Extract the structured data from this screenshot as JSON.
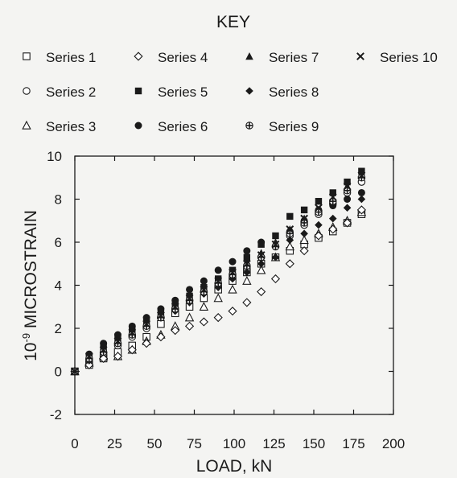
{
  "chart_data": {
    "type": "scatter",
    "legend": {
      "title": "KEY",
      "placement": "top"
    },
    "xlabel": "LOAD, kN",
    "ylabel": "10-9 MICROSTRAIN",
    "ylabel_base": "10",
    "ylabel_exponent": "-9",
    "ylabel_rest": " MICROSTRAIN",
    "xlim": [
      0,
      200
    ],
    "ylim": [
      -2,
      10
    ],
    "xticks": [
      0,
      25,
      50,
      75,
      100,
      125,
      150,
      175,
      200
    ],
    "yticks": [
      -2,
      0,
      2,
      4,
      6,
      8,
      10
    ],
    "x": [
      0,
      9,
      18,
      27,
      36,
      45,
      54,
      63,
      72,
      81,
      90,
      99,
      108,
      117,
      126,
      135,
      144,
      153,
      162,
      171,
      180
    ],
    "series": [
      {
        "name": "Series 1",
        "marker": "open-square",
        "values": [
          0,
          0.3,
          0.6,
          0.9,
          1.2,
          1.6,
          2.2,
          2.7,
          3.0,
          3.4,
          3.8,
          4.2,
          4.6,
          5.0,
          5.3,
          5.6,
          5.9,
          6.2,
          6.5,
          6.9,
          7.3
        ]
      },
      {
        "name": "Series 2",
        "marker": "open-circle",
        "values": [
          0,
          0.5,
          0.8,
          1.2,
          1.6,
          2.0,
          2.5,
          2.9,
          3.3,
          3.7,
          4.0,
          4.4,
          4.8,
          5.3,
          5.8,
          6.3,
          6.8,
          7.3,
          7.8,
          8.3,
          8.8
        ]
      },
      {
        "name": "Series 3",
        "marker": "open-triangle",
        "values": [
          0,
          0.4,
          0.7,
          0.7,
          1.0,
          1.4,
          1.7,
          2.1,
          2.5,
          3.0,
          3.4,
          3.8,
          4.2,
          4.7,
          5.3,
          5.8,
          6.1,
          6.4,
          6.7,
          7.0,
          7.4
        ]
      },
      {
        "name": "Series 4",
        "marker": "open-diamond",
        "values": [
          0,
          0.3,
          0.6,
          0.7,
          1.0,
          1.3,
          1.6,
          1.9,
          2.1,
          2.3,
          2.5,
          2.8,
          3.2,
          3.7,
          4.3,
          5.0,
          5.6,
          6.3,
          6.6,
          6.9,
          7.5
        ]
      },
      {
        "name": "Series 5",
        "marker": "filled-square",
        "values": [
          0,
          0.7,
          1.1,
          1.5,
          1.9,
          2.3,
          2.7,
          3.1,
          3.5,
          3.9,
          4.3,
          4.7,
          5.3,
          5.9,
          6.3,
          7.2,
          7.5,
          7.9,
          8.3,
          8.8,
          9.3
        ]
      },
      {
        "name": "Series 6",
        "marker": "filled-circle",
        "values": [
          0,
          0.8,
          1.3,
          1.7,
          2.1,
          2.5,
          2.9,
          3.3,
          3.8,
          4.2,
          4.7,
          5.1,
          5.6,
          6.0,
          5.8,
          6.5,
          7.0,
          7.5,
          7.7,
          8.0,
          8.3
        ]
      },
      {
        "name": "Series 7",
        "marker": "filled-triangle",
        "values": [
          0,
          0.6,
          1.0,
          1.4,
          1.8,
          2.2,
          2.6,
          3.0,
          3.4,
          3.8,
          4.2,
          4.6,
          5.1,
          5.5,
          6.0,
          6.6,
          7.1,
          7.5,
          7.9,
          8.6,
          9.2
        ]
      },
      {
        "name": "Series 8",
        "marker": "filled-diamond",
        "values": [
          0,
          0.5,
          0.9,
          1.3,
          1.7,
          2.1,
          2.5,
          2.8,
          3.2,
          3.6,
          3.9,
          4.3,
          4.6,
          5.0,
          5.3,
          6.1,
          6.4,
          6.8,
          7.1,
          7.6,
          8.0
        ]
      },
      {
        "name": "Series 9",
        "marker": "crossed-circle",
        "values": [
          0,
          0.6,
          0.9,
          1.3,
          1.7,
          2.1,
          2.5,
          2.9,
          3.3,
          3.7,
          4.1,
          4.5,
          4.9,
          5.3,
          5.8,
          6.4,
          6.9,
          7.4,
          7.9,
          8.4,
          9.0
        ]
      },
      {
        "name": "Series 10",
        "marker": "x-cross",
        "values": [
          0,
          0.7,
          1.0,
          1.4,
          1.8,
          2.2,
          2.6,
          3.0,
          3.4,
          3.8,
          4.2,
          4.6,
          5.0,
          5.4,
          5.9,
          6.6,
          7.1,
          7.6,
          8.1,
          8.6,
          9.1
        ]
      }
    ]
  }
}
